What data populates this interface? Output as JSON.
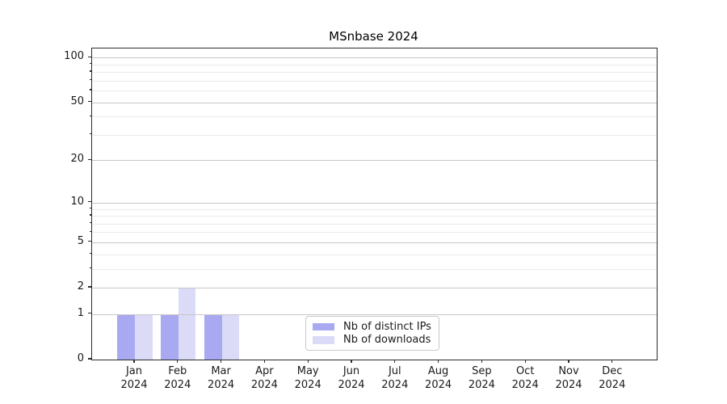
{
  "chart_data": {
    "type": "bar",
    "title": "MSnbase 2024",
    "categories": [
      "Jan",
      "Feb",
      "Mar",
      "Apr",
      "May",
      "Jun",
      "Jul",
      "Aug",
      "Sep",
      "Oct",
      "Nov",
      "Dec"
    ],
    "category_year": "2024",
    "series": [
      {
        "name": "Nb of distinct IPs",
        "color": "#a9a9f2",
        "values": [
          1,
          1,
          1,
          0,
          0,
          0,
          0,
          0,
          0,
          0,
          0,
          0
        ]
      },
      {
        "name": "Nb of downloads",
        "color": "#dbdbf8",
        "values": [
          1,
          2,
          1,
          0,
          0,
          0,
          0,
          0,
          0,
          0,
          0,
          0
        ]
      }
    ],
    "yscale": "log1p",
    "ylim": [
      0,
      115
    ],
    "yticks": [
      0,
      1,
      2,
      5,
      10,
      20,
      50,
      100
    ],
    "yticks_minor": [
      3,
      4,
      6,
      7,
      8,
      9,
      30,
      40,
      60,
      70,
      80,
      90
    ],
    "xlabel": "",
    "ylabel": "",
    "grid": "horizontal",
    "legend_position": "bottom-center"
  },
  "colors": {
    "grid_major": "#c6c6c6",
    "grid_minor": "#eaeaea",
    "spine": "#2b2b2b",
    "text": "#1a1a1a",
    "background": "#ffffff"
  }
}
